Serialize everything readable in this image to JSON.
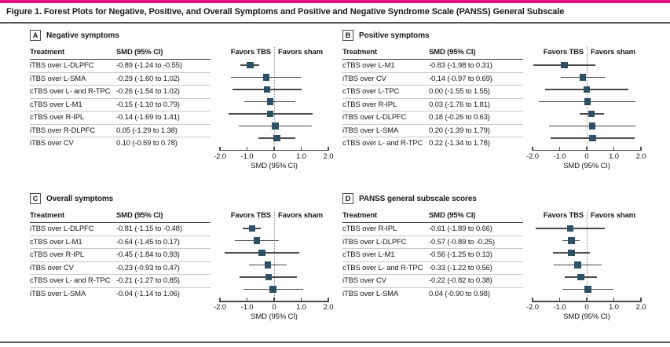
{
  "figure_title": "Figure 1. Forest Plots for Negative, Positive, and Overall Symptoms and Positive and Negative Syndrome Scale (PANSS) General Subscale",
  "colors": {
    "accent_bar": "#e6117e",
    "marker": "#2d5162",
    "ci_line": "#4a4a4a"
  },
  "chart_data": [
    {
      "type": "forest",
      "letter": "A",
      "title": "Negative symptoms",
      "columns": {
        "treatment": "Treatment",
        "smd": "SMD (95% CI)"
      },
      "favors_left": "Favors TBS",
      "favors_right": "Favors sham",
      "xlabel": "SMD (95% CI)",
      "xlim": [
        -2.0,
        2.0
      ],
      "xticks": [
        -2.0,
        -1.0,
        0,
        1.0,
        2.0
      ],
      "xtick_labels": [
        "-2.0",
        "-1.0",
        "0",
        "1.0",
        "2.0"
      ],
      "rows": [
        {
          "treatment": "iTBS over L-DLPFC",
          "smd_label": "-0.89 (-1.24 to -0.55)",
          "smd": -0.89,
          "ci_low": -1.24,
          "ci_high": -0.55
        },
        {
          "treatment": "iTBS over L-SMA",
          "smd_label": "-0.29 (-1.60 to 1.02)",
          "smd": -0.29,
          "ci_low": -1.6,
          "ci_high": 1.02
        },
        {
          "treatment": "cTBS over L- and R-TPC",
          "smd_label": "-0.26 (-1.54 to 1.02)",
          "smd": -0.26,
          "ci_low": -1.54,
          "ci_high": 1.02
        },
        {
          "treatment": "cTBS over L-M1",
          "smd_label": "-0.15 (-1.10 to 0.79)",
          "smd": -0.15,
          "ci_low": -1.1,
          "ci_high": 0.79
        },
        {
          "treatment": "cTBS over R-IPL",
          "smd_label": "-0.14 (-1.69 to 1.41)",
          "smd": -0.14,
          "ci_low": -1.69,
          "ci_high": 1.41
        },
        {
          "treatment": "iTBS over R-DLPFC",
          "smd_label": "0.05 (-1.29 to 1.38)",
          "smd": 0.05,
          "ci_low": -1.29,
          "ci_high": 1.38
        },
        {
          "treatment": "iTBS over CV",
          "smd_label": "0.10 (-0.59 to 0.78)",
          "smd": 0.1,
          "ci_low": -0.59,
          "ci_high": 0.78
        }
      ]
    },
    {
      "type": "forest",
      "letter": "B",
      "title": "Positive symptoms",
      "columns": {
        "treatment": "Treatment",
        "smd": "SMD (95% CI)"
      },
      "favors_left": "Favors TBS",
      "favors_right": "Favors sham",
      "xlabel": "SMD (95% CI)",
      "xlim": [
        -2.0,
        2.0
      ],
      "xticks": [
        -2.0,
        -1.0,
        0,
        1.0,
        2.0
      ],
      "xtick_labels": [
        "-2.0",
        "-1.0",
        "0",
        "1.0",
        "2.0"
      ],
      "rows": [
        {
          "treatment": "cTBS over L-M1",
          "smd_label": "-0.83 (-1.98 to 0.31)",
          "smd": -0.83,
          "ci_low": -1.98,
          "ci_high": 0.31
        },
        {
          "treatment": "iTBS over CV",
          "smd_label": "-0.14 (-0.97 to 0.69)",
          "smd": -0.14,
          "ci_low": -0.97,
          "ci_high": 0.69
        },
        {
          "treatment": "cTBS over L-TPC",
          "smd_label": "0.00 (-1.55 to 1.55)",
          "smd": 0.0,
          "ci_low": -1.55,
          "ci_high": 1.55
        },
        {
          "treatment": "cTBS over R-IPL",
          "smd_label": "0.03 (-1.76 to 1.81)",
          "smd": 0.03,
          "ci_low": -1.76,
          "ci_high": 1.81
        },
        {
          "treatment": "iTBS over L-DLPFC",
          "smd_label": "0.18 (-0.26 to 0.63)",
          "smd": 0.18,
          "ci_low": -0.26,
          "ci_high": 0.63
        },
        {
          "treatment": "iTBS over L-SMA",
          "smd_label": "0.20 (-1.39 to 1.79)",
          "smd": 0.2,
          "ci_low": -1.39,
          "ci_high": 1.79
        },
        {
          "treatment": "cTBS over L- and R-TPC",
          "smd_label": "0.22 (-1.34 to 1.78)",
          "smd": 0.22,
          "ci_low": -1.34,
          "ci_high": 1.78
        }
      ]
    },
    {
      "type": "forest",
      "letter": "C",
      "title": "Overall symptoms",
      "columns": {
        "treatment": "Treatment",
        "smd": "SMD (95% CI)"
      },
      "favors_left": "Favors TBS",
      "favors_right": "Favors sham",
      "xlabel": "SMD (95% CI)",
      "xlim": [
        -2.0,
        2.0
      ],
      "xticks": [
        -2.0,
        -1.0,
        0,
        1.0,
        2.0
      ],
      "xtick_labels": [
        "-2.0",
        "-1.0",
        "0",
        "1.0",
        "2.0"
      ],
      "rows": [
        {
          "treatment": "iTBS over L-DLPFC",
          "smd_label": "-0.81 (-1.15 to -0.48)",
          "smd": -0.81,
          "ci_low": -1.15,
          "ci_high": -0.48
        },
        {
          "treatment": "cTBS over L-M1",
          "smd_label": "-0.64 (-1.45 to 0.17)",
          "smd": -0.64,
          "ci_low": -1.45,
          "ci_high": 0.17
        },
        {
          "treatment": "cTBS over R-IPL",
          "smd_label": "-0.45 (-1.84 to 0.93)",
          "smd": -0.45,
          "ci_low": -1.84,
          "ci_high": 0.93
        },
        {
          "treatment": "iTBS over CV",
          "smd_label": "-0.23 (-0.93 to 0.47)",
          "smd": -0.23,
          "ci_low": -0.93,
          "ci_high": 0.47
        },
        {
          "treatment": "cTBS over L- and R-TPC",
          "smd_label": "-0.21 (-1.27 to 0.85)",
          "smd": -0.21,
          "ci_low": -1.27,
          "ci_high": 0.85
        },
        {
          "treatment": "iTBS over L-SMA",
          "smd_label": "-0.04 (-1.14 to 1.06)",
          "smd": -0.04,
          "ci_low": -1.14,
          "ci_high": 1.06
        }
      ]
    },
    {
      "type": "forest",
      "letter": "D",
      "title": "PANSS general subscale scores",
      "columns": {
        "treatment": "Treatment",
        "smd": "SMD (95% CI)"
      },
      "favors_left": "Favors TBS",
      "favors_right": "Favors sham",
      "xlabel": "SMD (95% CI)",
      "xlim": [
        -2.0,
        2.0
      ],
      "xticks": [
        -2.0,
        -1.0,
        0,
        1.0,
        2.0
      ],
      "xtick_labels": [
        "-2.0",
        "-1.0",
        "0",
        "1.0",
        "2.0"
      ],
      "rows": [
        {
          "treatment": "cTBS over R-IPL",
          "smd_label": "-0.61 (-1.89 to 0.66)",
          "smd": -0.61,
          "ci_low": -1.89,
          "ci_high": 0.66
        },
        {
          "treatment": "iTBS over L-DLPFC",
          "smd_label": "-0.57 (-0.89 to -0.25)",
          "smd": -0.57,
          "ci_low": -0.89,
          "ci_high": -0.25
        },
        {
          "treatment": "cTBS over L-M1",
          "smd_label": "-0.56 (-1.25 to 0.13)",
          "smd": -0.56,
          "ci_low": -1.25,
          "ci_high": 0.13
        },
        {
          "treatment": "cTBS over L- and R-TPC",
          "smd_label": "-0.33 (-1.22 to 0.56)",
          "smd": -0.33,
          "ci_low": -1.22,
          "ci_high": 0.56
        },
        {
          "treatment": "iTBS over CV",
          "smd_label": "-0.22 (-0.82 to 0.38)",
          "smd": -0.22,
          "ci_low": -0.82,
          "ci_high": 0.38
        },
        {
          "treatment": "iTBS over L-SMA",
          "smd_label": "0.04 (-0.90 to 0.98)",
          "smd": 0.04,
          "ci_low": -0.9,
          "ci_high": 0.98
        }
      ]
    }
  ]
}
